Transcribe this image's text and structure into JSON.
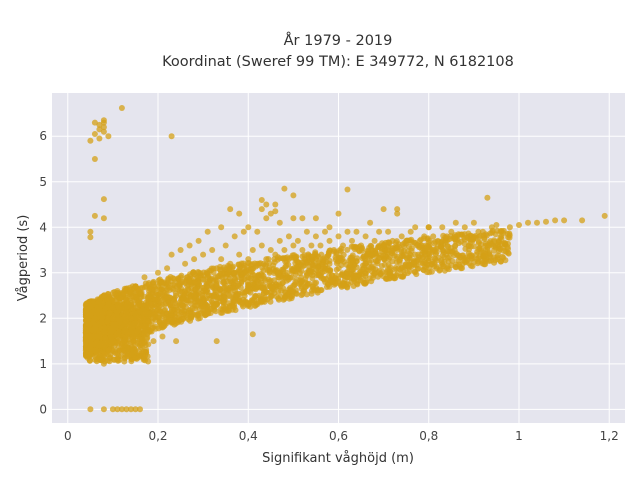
{
  "chart_data": {
    "type": "scatter",
    "title": [
      "År 1979 - 2019",
      "Koordinat (Sweref 99 TM): E 349772, N 6182108"
    ],
    "xlabel": "Signifikant våghöjd (m)",
    "ylabel": "Vågperiod (s)",
    "xlim": [
      -0.035,
      1.235
    ],
    "ylim": [
      -0.3,
      6.95
    ],
    "xticks": [
      0,
      0.2,
      0.4,
      0.6,
      0.8,
      1,
      1.2
    ],
    "xtick_labels": [
      "0",
      "0,2",
      "0,4",
      "0,6",
      "0,8",
      "1",
      "1,2"
    ],
    "yticks": [
      0,
      1,
      2,
      3,
      4,
      5,
      6
    ],
    "ytick_labels": [
      "0",
      "1",
      "2",
      "3",
      "4",
      "5",
      "6"
    ],
    "grid": true,
    "legend": "none",
    "colors": {
      "points": "#D4A017",
      "plot_bg": "#E5E5EE",
      "grid": "#FFFFFF"
    },
    "series": [
      {
        "values": [
          [
            0.08,
            6.3
          ],
          [
            0.07,
            6.25
          ],
          [
            0.08,
            6.2
          ],
          [
            0.07,
            6.15
          ],
          [
            0.08,
            6.1
          ],
          [
            0.06,
            6.05
          ],
          [
            0.09,
            6.0
          ],
          [
            0.07,
            5.95
          ],
          [
            0.08,
            6.35
          ],
          [
            0.06,
            6.3
          ],
          [
            0.12,
            6.62
          ],
          [
            0.23,
            6.0
          ],
          [
            0.06,
            5.5
          ],
          [
            0.05,
            5.9
          ],
          [
            0.08,
            4.62
          ],
          [
            0.06,
            4.25
          ],
          [
            0.08,
            4.2
          ],
          [
            0.05,
            3.9
          ],
          [
            0.05,
            3.78
          ],
          [
            0.05,
            0.0
          ],
          [
            0.08,
            0.0
          ],
          [
            0.1,
            0.0
          ],
          [
            0.11,
            0.0
          ],
          [
            0.12,
            0.0
          ],
          [
            0.13,
            0.0
          ],
          [
            0.14,
            0.0
          ],
          [
            0.15,
            0.0
          ],
          [
            0.16,
            0.0
          ],
          [
            0.04,
            1.3
          ],
          [
            0.04,
            1.5
          ],
          [
            0.05,
            1.2
          ],
          [
            0.05,
            1.6
          ],
          [
            0.06,
            1.8
          ],
          [
            0.06,
            2.0
          ],
          [
            0.07,
            1.4
          ],
          [
            0.07,
            2.2
          ],
          [
            0.08,
            1.0
          ],
          [
            0.08,
            1.7
          ],
          [
            0.09,
            1.3
          ],
          [
            0.09,
            2.3
          ],
          [
            0.1,
            1.5
          ],
          [
            0.1,
            2.0
          ],
          [
            0.11,
            1.1
          ],
          [
            0.11,
            2.6
          ],
          [
            0.12,
            1.4
          ],
          [
            0.12,
            2.2
          ],
          [
            0.13,
            1.7
          ],
          [
            0.13,
            2.4
          ],
          [
            0.14,
            1.2
          ],
          [
            0.14,
            2.0
          ],
          [
            0.15,
            1.6
          ],
          [
            0.15,
            2.7
          ],
          [
            0.16,
            1.4
          ],
          [
            0.16,
            2.3
          ],
          [
            0.17,
            1.8
          ],
          [
            0.17,
            2.9
          ],
          [
            0.18,
            2.1
          ],
          [
            0.18,
            2.6
          ],
          [
            0.19,
            1.5
          ],
          [
            0.19,
            2.8
          ],
          [
            0.2,
            2.2
          ],
          [
            0.2,
            3.0
          ],
          [
            0.21,
            2.4
          ],
          [
            0.21,
            1.6
          ],
          [
            0.22,
            2.7
          ],
          [
            0.22,
            3.1
          ],
          [
            0.23,
            2.3
          ],
          [
            0.23,
            3.4
          ],
          [
            0.24,
            2.5
          ],
          [
            0.24,
            1.5
          ],
          [
            0.25,
            2.9
          ],
          [
            0.25,
            3.5
          ],
          [
            0.26,
            2.6
          ],
          [
            0.26,
            3.2
          ],
          [
            0.27,
            2.8
          ],
          [
            0.27,
            3.6
          ],
          [
            0.28,
            2.5
          ],
          [
            0.28,
            3.3
          ],
          [
            0.29,
            3.0
          ],
          [
            0.29,
            3.7
          ],
          [
            0.3,
            2.6
          ],
          [
            0.3,
            3.4
          ],
          [
            0.31,
            2.9
          ],
          [
            0.31,
            3.9
          ],
          [
            0.32,
            2.7
          ],
          [
            0.32,
            3.5
          ],
          [
            0.33,
            3.1
          ],
          [
            0.33,
            1.5
          ],
          [
            0.34,
            3.3
          ],
          [
            0.34,
            4.0
          ],
          [
            0.35,
            2.9
          ],
          [
            0.35,
            3.6
          ],
          [
            0.36,
            3.2
          ],
          [
            0.36,
            4.4
          ],
          [
            0.37,
            3.0
          ],
          [
            0.37,
            3.8
          ],
          [
            0.38,
            3.4
          ],
          [
            0.38,
            4.3
          ],
          [
            0.39,
            3.1
          ],
          [
            0.39,
            3.9
          ],
          [
            0.4,
            3.3
          ],
          [
            0.4,
            4.0
          ],
          [
            0.41,
            3.5
          ],
          [
            0.41,
            1.65
          ],
          [
            0.42,
            3.2
          ],
          [
            0.42,
            3.9
          ],
          [
            0.43,
            3.6
          ],
          [
            0.43,
            4.6
          ],
          [
            0.44,
            3.3
          ],
          [
            0.44,
            4.2
          ],
          [
            0.45,
            3.5
          ],
          [
            0.45,
            4.3
          ],
          [
            0.46,
            3.4
          ],
          [
            0.46,
            4.5
          ],
          [
            0.47,
            3.7
          ],
          [
            0.47,
            4.1
          ],
          [
            0.48,
            3.5
          ],
          [
            0.48,
            4.85
          ],
          [
            0.49,
            3.8
          ],
          [
            0.5,
            3.6
          ],
          [
            0.5,
            4.2
          ],
          [
            0.51,
            3.7
          ],
          [
            0.52,
            3.5
          ],
          [
            0.52,
            4.2
          ],
          [
            0.53,
            3.9
          ],
          [
            0.54,
            3.6
          ],
          [
            0.55,
            3.8
          ],
          [
            0.55,
            4.2
          ],
          [
            0.56,
            3.6
          ],
          [
            0.57,
            3.9
          ],
          [
            0.58,
            3.7
          ],
          [
            0.58,
            4.0
          ],
          [
            0.59,
            3.5
          ],
          [
            0.6,
            3.8
          ],
          [
            0.6,
            4.3
          ],
          [
            0.61,
            3.6
          ],
          [
            0.62,
            3.9
          ],
          [
            0.62,
            4.83
          ],
          [
            0.63,
            3.7
          ],
          [
            0.64,
            3.9
          ],
          [
            0.65,
            3.6
          ],
          [
            0.66,
            3.8
          ],
          [
            0.67,
            4.1
          ],
          [
            0.68,
            3.7
          ],
          [
            0.69,
            3.9
          ],
          [
            0.7,
            3.6
          ],
          [
            0.71,
            3.9
          ],
          [
            0.72,
            3.7
          ],
          [
            0.73,
            4.3
          ],
          [
            0.74,
            3.8
          ],
          [
            0.75,
            3.7
          ],
          [
            0.76,
            3.9
          ],
          [
            0.77,
            4.0
          ],
          [
            0.78,
            3.7
          ],
          [
            0.79,
            3.8
          ],
          [
            0.8,
            4.0
          ],
          [
            0.81,
            3.8
          ],
          [
            0.82,
            3.7
          ],
          [
            0.83,
            4.0
          ],
          [
            0.84,
            3.8
          ],
          [
            0.85,
            3.9
          ],
          [
            0.86,
            3.7
          ],
          [
            0.88,
            4.0
          ],
          [
            0.89,
            3.8
          ],
          [
            0.9,
            4.1
          ],
          [
            0.91,
            3.9
          ],
          [
            0.92,
            3.9
          ],
          [
            0.94,
            4.0
          ],
          [
            0.95,
            4.05
          ],
          [
            0.96,
            3.9
          ],
          [
            0.98,
            4.0
          ],
          [
            1.0,
            4.05
          ],
          [
            1.02,
            4.1
          ],
          [
            1.04,
            4.1
          ],
          [
            1.06,
            4.12
          ],
          [
            1.08,
            4.15
          ],
          [
            1.1,
            4.15
          ],
          [
            1.14,
            4.15
          ],
          [
            1.19,
            4.25
          ],
          [
            0.93,
            4.65
          ],
          [
            0.7,
            4.4
          ],
          [
            0.73,
            4.4
          ],
          [
            0.8,
            4.0
          ],
          [
            0.86,
            4.1
          ],
          [
            0.5,
            4.7
          ],
          [
            0.46,
            4.35
          ],
          [
            0.44,
            4.5
          ],
          [
            0.43,
            4.4
          ]
        ]
      }
    ]
  }
}
